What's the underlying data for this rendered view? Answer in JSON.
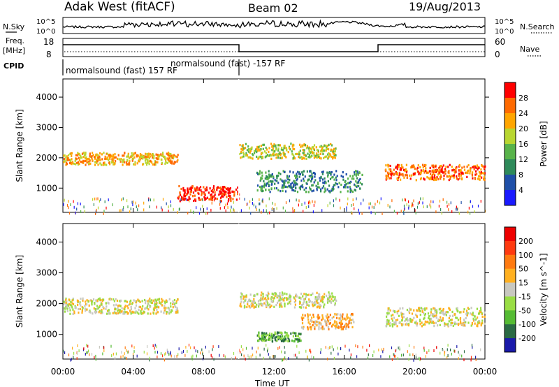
{
  "header": {
    "radar": "Adak West (fitACF)",
    "beam": "Beam 02",
    "date": "19/Aug/2013"
  },
  "status": {
    "nsky_label": "N.Sky",
    "nsearch_label": "N.Search",
    "freq_label": "Freq.",
    "freq_unit": "[MHz]",
    "nave_label": "Nave",
    "cpid_label": "CPID",
    "left_ticks_top": [
      "10^5",
      "10^0"
    ],
    "right_ticks_top": [
      "10^5",
      "10^0"
    ],
    "freq_ticks": [
      "18",
      "8"
    ],
    "nave_ticks": [
      "60",
      "0"
    ],
    "cpid_1": "normalsound (fast) 157 RF",
    "cpid_2": "normalsound (fast) -157 RF"
  },
  "chart_data": [
    {
      "type": "heatmap",
      "title": "",
      "xlabel": "Time UT",
      "ylabel": "Slant Range [km]",
      "x_ticks": [
        "00:00",
        "04:00",
        "08:00",
        "12:00",
        "16:00",
        "20:00",
        "00:00"
      ],
      "y_ticks": [
        "1000",
        "2000",
        "3000",
        "4000"
      ],
      "ylim": [
        200,
        4600
      ],
      "colorbar_label": "Power [dB]",
      "colorbar_ticks": [
        "28",
        "24",
        "20",
        "16",
        "12",
        "8",
        "4"
      ],
      "colors": [
        "#1a1aff",
        "#1f4fa8",
        "#2e8a5a",
        "#58b34a",
        "#b8d630",
        "#ffa500",
        "#ff6a00",
        "#ff0000"
      ],
      "echo_bands": [
        {
          "t": [
            0.0,
            6.5
          ],
          "range": [
            1800,
            2200
          ],
          "level": 5
        },
        {
          "t": [
            6.5,
            10.0
          ],
          "range": [
            600,
            1100
          ],
          "level": 7
        },
        {
          "t": [
            10.0,
            15.5
          ],
          "range": [
            2000,
            2500
          ],
          "level": 4
        },
        {
          "t": [
            11.0,
            17.0
          ],
          "range": [
            900,
            1600
          ],
          "level": 2
        },
        {
          "t": [
            18.3,
            24.0
          ],
          "range": [
            1300,
            1800
          ],
          "level": 6
        }
      ]
    },
    {
      "type": "heatmap",
      "title": "",
      "xlabel": "Time UT",
      "ylabel": "Slant Range [km]",
      "x_ticks": [
        "00:00",
        "04:00",
        "08:00",
        "12:00",
        "16:00",
        "20:00",
        "00:00"
      ],
      "y_ticks": [
        "1000",
        "2000",
        "3000",
        "4000"
      ],
      "ylim": [
        200,
        4600
      ],
      "colorbar_label": "Velocity [m s^-1]",
      "colorbar_ticks": [
        "200",
        "100",
        "50",
        "15",
        "-15",
        "-50",
        "-100",
        "-200"
      ],
      "colors": [
        "#1a1aaa",
        "#2a6a44",
        "#55bb33",
        "#99dd44",
        "#c8c8c0",
        "#ffb020",
        "#ff7a10",
        "#ff3a10",
        "#ee0000"
      ],
      "echo_bands": [
        {
          "t": [
            0.0,
            6.5
          ],
          "range": [
            1700,
            2200
          ],
          "level": 4
        },
        {
          "t": [
            10.0,
            15.5
          ],
          "range": [
            1900,
            2400
          ],
          "level": 4
        },
        {
          "t": [
            13.5,
            16.5
          ],
          "range": [
            1200,
            1700
          ],
          "level": 5
        },
        {
          "t": [
            11.0,
            13.5
          ],
          "range": [
            800,
            1100
          ],
          "level": 2
        },
        {
          "t": [
            18.3,
            24.0
          ],
          "range": [
            1300,
            1900
          ],
          "level": 4
        }
      ]
    }
  ]
}
